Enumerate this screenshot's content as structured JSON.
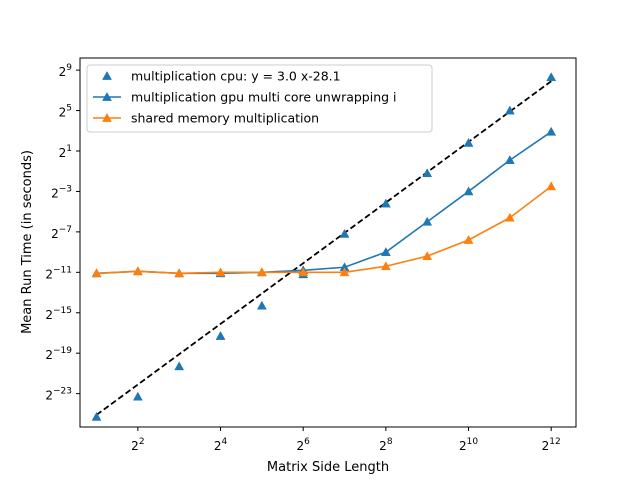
{
  "chart_data": {
    "type": "scatter",
    "title": "",
    "xlabel": "Matrix Side Length",
    "ylabel": "Mean Run Time (in seconds)",
    "x_scale": "log2",
    "y_scale": "log2",
    "x_exponent_range": [
      0.6,
      12.6
    ],
    "y_exponent_range": [
      -26.3,
      10.2
    ],
    "x_tick_exponents": [
      2,
      4,
      6,
      8,
      10,
      12
    ],
    "y_tick_exponents": [
      -23,
      -19,
      -15,
      -11,
      -7,
      -3,
      1,
      5,
      9
    ],
    "tick_base": "2",
    "grid": false,
    "legend_position": "upper left",
    "x": [
      2,
      4,
      8,
      16,
      32,
      64,
      128,
      256,
      512,
      1024,
      2048,
      4096
    ],
    "series": [
      {
        "name": "multiplication cpu: y = 3.0 x-28.1",
        "style": "markers",
        "marker": "triangle",
        "color": "#1f77b4",
        "values_log2": [
          -25.3,
          -23.3,
          -20.3,
          -17.3,
          -14.3,
          -11.2,
          -7.2,
          -4.2,
          -1.2,
          1.8,
          5.0,
          8.3
        ]
      },
      {
        "name": "multiplication gpu multi core unwrapping i",
        "style": "line+markers",
        "marker": "triangle",
        "color": "#1f77b4",
        "values_log2": [
          -11.1,
          -10.9,
          -11.1,
          -11.1,
          -11.0,
          -10.8,
          -10.5,
          -9.0,
          -6.0,
          -3.0,
          0.1,
          2.9
        ]
      },
      {
        "name": "shared memory multiplication",
        "style": "line+markers",
        "marker": "triangle",
        "color": "#ff7f0e",
        "values_log2": [
          -11.1,
          -10.9,
          -11.1,
          -11.0,
          -11.0,
          -11.0,
          -11.0,
          -10.4,
          -9.4,
          -7.8,
          -5.6,
          -2.5
        ]
      }
    ],
    "fit_line": {
      "slope": 3.0,
      "intercept": -28.1,
      "style": "dashed",
      "color": "#000000"
    }
  }
}
